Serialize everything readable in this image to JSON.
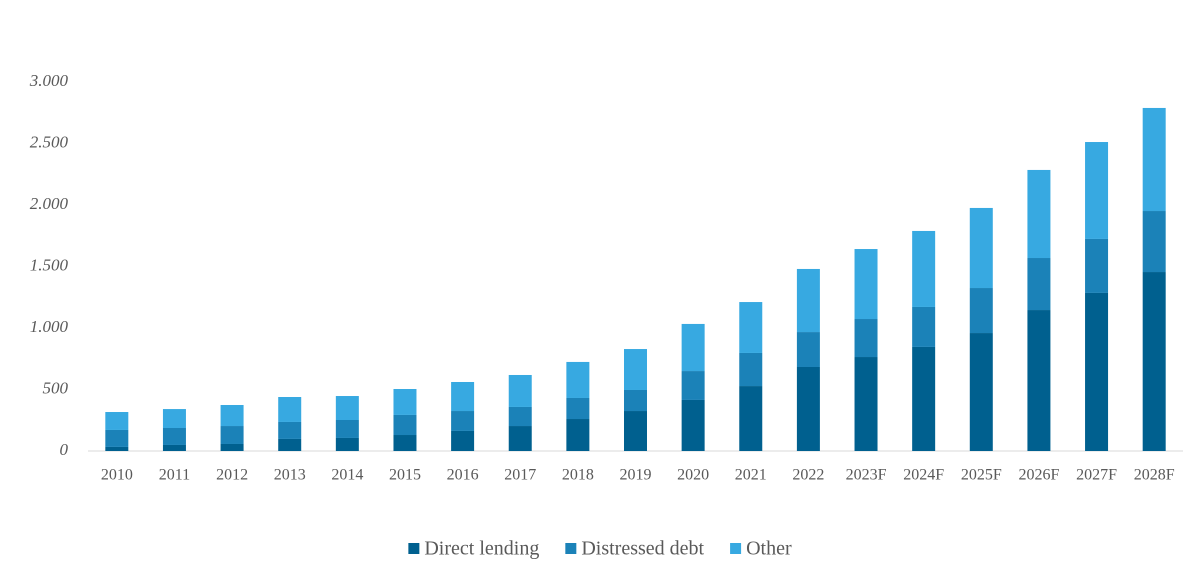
{
  "chart_data": {
    "type": "stacked_bar",
    "categories": [
      "2010",
      "2011",
      "2012",
      "2013",
      "2014",
      "2015",
      "2016",
      "2017",
      "2018",
      "2019",
      "2020",
      "2021",
      "2022",
      "2023F",
      "2024F",
      "2025F",
      "2026F",
      "2027F",
      "2028F"
    ],
    "series": [
      {
        "name": "Direct lending",
        "color": "#00608f",
        "values": [
          33,
          49,
          57,
          98,
          106,
          130,
          163,
          203,
          260,
          325,
          415,
          528,
          683,
          764,
          846,
          959,
          1146,
          1285,
          1455
        ]
      },
      {
        "name": "Distressed debt",
        "color": "#1b82b8",
        "values": [
          138,
          138,
          146,
          138,
          146,
          163,
          162,
          155,
          171,
          171,
          235,
          269,
          284,
          309,
          325,
          366,
          423,
          439,
          496
        ]
      },
      {
        "name": "Other",
        "color": "#37a9e1",
        "values": [
          146,
          154,
          171,
          203,
          195,
          211,
          236,
          260,
          293,
          333,
          383,
          414,
          513,
          569,
          618,
          651,
          716,
          788,
          838
        ]
      }
    ],
    "ylim": [
      0,
      3000
    ],
    "yticks": [
      0,
      500,
      {
        "value": 1000,
        "label": "1.000"
      },
      {
        "value": 1500,
        "label": "1.500"
      },
      {
        "value": 2000,
        "label": "2.000"
      },
      {
        "value": 2500,
        "label": "2.500"
      },
      {
        "value": 3000,
        "label": "3.000"
      }
    ],
    "grid": false,
    "legend": "bottom"
  }
}
